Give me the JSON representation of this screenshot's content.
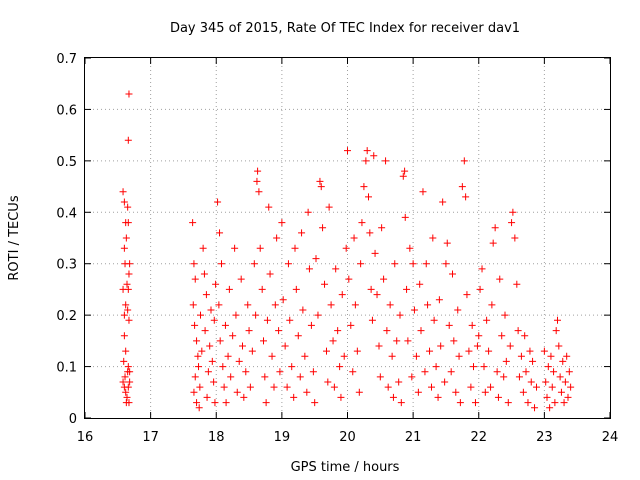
{
  "chart_data": {
    "type": "scatter",
    "title": "Day 345 of 2015, Rate Of TEC Index for receiver dav1",
    "xlabel": "GPS time / hours",
    "ylabel": "ROTI / TECUs",
    "xlim": [
      16,
      24
    ],
    "ylim": [
      0,
      0.7
    ],
    "xticks": [
      "16",
      "17",
      "18",
      "19",
      "20",
      "21",
      "22",
      "23",
      "24"
    ],
    "yticks": [
      "0",
      "0.1",
      "0.2",
      "0.3",
      "0.4",
      "0.5",
      "0.6",
      "0.7"
    ],
    "grid": true,
    "marker": "+",
    "color": "#ff0000",
    "series": [
      {
        "points": [
          [
            16.58,
            0.44
          ],
          [
            16.6,
            0.42
          ],
          [
            16.62,
            0.38
          ],
          [
            16.63,
            0.35
          ],
          [
            16.6,
            0.33
          ],
          [
            16.61,
            0.3
          ],
          [
            16.64,
            0.26
          ],
          [
            16.62,
            0.22
          ],
          [
            16.6,
            0.2
          ],
          [
            16.58,
            0.25
          ],
          [
            16.6,
            0.16
          ],
          [
            16.62,
            0.13
          ],
          [
            16.59,
            0.11
          ],
          [
            16.58,
            0.07
          ],
          [
            16.6,
            0.06
          ],
          [
            16.62,
            0.05
          ],
          [
            16.64,
            0.04
          ],
          [
            16.61,
            0.08
          ],
          [
            16.63,
            0.03
          ],
          [
            16.65,
            0.09
          ],
          [
            16.67,
            0.63
          ],
          [
            16.66,
            0.54
          ],
          [
            16.65,
            0.41
          ],
          [
            16.66,
            0.38
          ],
          [
            16.68,
            0.3
          ],
          [
            16.67,
            0.28
          ],
          [
            16.66,
            0.25
          ],
          [
            16.65,
            0.21
          ],
          [
            16.67,
            0.19
          ],
          [
            16.66,
            0.1
          ],
          [
            16.68,
            0.07
          ],
          [
            16.66,
            0.06
          ],
          [
            16.67,
            0.03
          ],
          [
            16.68,
            0.09
          ],
          [
            17.64,
            0.38
          ],
          [
            17.66,
            0.3
          ],
          [
            17.68,
            0.27
          ],
          [
            17.65,
            0.22
          ],
          [
            17.67,
            0.18
          ],
          [
            17.7,
            0.15
          ],
          [
            17.72,
            0.12
          ],
          [
            17.68,
            0.08
          ],
          [
            17.66,
            0.05
          ],
          [
            17.7,
            0.03
          ],
          [
            17.74,
            0.02
          ],
          [
            17.73,
            0.1
          ],
          [
            17.76,
            0.2
          ],
          [
            17.78,
            0.13
          ],
          [
            17.75,
            0.06
          ],
          [
            17.8,
            0.33
          ],
          [
            17.82,
            0.28
          ],
          [
            17.85,
            0.24
          ],
          [
            17.83,
            0.17
          ],
          [
            17.88,
            0.09
          ],
          [
            17.86,
            0.04
          ],
          [
            17.9,
            0.14
          ],
          [
            17.92,
            0.21
          ],
          [
            17.94,
            0.11
          ],
          [
            17.96,
            0.07
          ],
          [
            17.98,
            0.03
          ],
          [
            17.97,
            0.19
          ],
          [
            17.99,
            0.26
          ],
          [
            18.02,
            0.42
          ],
          [
            18.05,
            0.36
          ],
          [
            18.08,
            0.3
          ],
          [
            18.04,
            0.22
          ],
          [
            18.06,
            0.15
          ],
          [
            18.1,
            0.1
          ],
          [
            18.12,
            0.06
          ],
          [
            18.15,
            0.03
          ],
          [
            18.14,
            0.18
          ],
          [
            18.18,
            0.12
          ],
          [
            18.2,
            0.25
          ],
          [
            18.22,
            0.08
          ],
          [
            18.25,
            0.16
          ],
          [
            18.28,
            0.33
          ],
          [
            18.3,
            0.2
          ],
          [
            18.32,
            0.05
          ],
          [
            18.35,
            0.11
          ],
          [
            18.38,
            0.27
          ],
          [
            18.4,
            0.14
          ],
          [
            18.42,
            0.04
          ],
          [
            18.45,
            0.09
          ],
          [
            18.48,
            0.22
          ],
          [
            18.5,
            0.17
          ],
          [
            18.52,
            0.06
          ],
          [
            18.55,
            0.13
          ],
          [
            18.58,
            0.3
          ],
          [
            18.6,
            0.2
          ],
          [
            18.62,
            0.46
          ],
          [
            18.63,
            0.48
          ],
          [
            18.65,
            0.44
          ],
          [
            18.67,
            0.33
          ],
          [
            18.7,
            0.25
          ],
          [
            18.72,
            0.15
          ],
          [
            18.74,
            0.08
          ],
          [
            18.76,
            0.03
          ],
          [
            18.78,
            0.19
          ],
          [
            18.8,
            0.41
          ],
          [
            18.82,
            0.28
          ],
          [
            18.85,
            0.12
          ],
          [
            18.88,
            0.06
          ],
          [
            18.9,
            0.22
          ],
          [
            18.92,
            0.35
          ],
          [
            18.95,
            0.17
          ],
          [
            18.97,
            0.09
          ],
          [
            19.0,
            0.38
          ],
          [
            19.02,
            0.23
          ],
          [
            19.05,
            0.14
          ],
          [
            19.08,
            0.06
          ],
          [
            19.1,
            0.3
          ],
          [
            19.12,
            0.19
          ],
          [
            19.15,
            0.1
          ],
          [
            19.18,
            0.04
          ],
          [
            19.2,
            0.33
          ],
          [
            19.22,
            0.25
          ],
          [
            19.25,
            0.16
          ],
          [
            19.28,
            0.08
          ],
          [
            19.3,
            0.36
          ],
          [
            19.32,
            0.21
          ],
          [
            19.35,
            0.12
          ],
          [
            19.38,
            0.05
          ],
          [
            19.4,
            0.4
          ],
          [
            19.42,
            0.29
          ],
          [
            19.45,
            0.18
          ],
          [
            19.48,
            0.09
          ],
          [
            19.5,
            0.03
          ],
          [
            19.52,
            0.31
          ],
          [
            19.55,
            0.2
          ],
          [
            19.58,
            0.46
          ],
          [
            19.6,
            0.45
          ],
          [
            19.62,
            0.37
          ],
          [
            19.65,
            0.26
          ],
          [
            19.68,
            0.13
          ],
          [
            19.7,
            0.07
          ],
          [
            19.72,
            0.41
          ],
          [
            19.75,
            0.22
          ],
          [
            19.78,
            0.15
          ],
          [
            19.8,
            0.06
          ],
          [
            19.82,
            0.29
          ],
          [
            19.85,
            0.17
          ],
          [
            19.88,
            0.1
          ],
          [
            19.9,
            0.04
          ],
          [
            19.92,
            0.24
          ],
          [
            19.95,
            0.12
          ],
          [
            19.98,
            0.33
          ],
          [
            20.0,
            0.52
          ],
          [
            20.02,
            0.27
          ],
          [
            20.05,
            0.18
          ],
          [
            20.08,
            0.09
          ],
          [
            20.1,
            0.35
          ],
          [
            20.12,
            0.22
          ],
          [
            20.15,
            0.13
          ],
          [
            20.18,
            0.05
          ],
          [
            20.2,
            0.3
          ],
          [
            20.22,
            0.38
          ],
          [
            20.25,
            0.45
          ],
          [
            20.28,
            0.5
          ],
          [
            20.3,
            0.52
          ],
          [
            20.32,
            0.43
          ],
          [
            20.34,
            0.36
          ],
          [
            20.36,
            0.25
          ],
          [
            20.38,
            0.19
          ],
          [
            20.4,
            0.51
          ],
          [
            20.42,
            0.32
          ],
          [
            20.45,
            0.24
          ],
          [
            20.48,
            0.14
          ],
          [
            20.5,
            0.08
          ],
          [
            20.52,
            0.37
          ],
          [
            20.55,
            0.27
          ],
          [
            20.58,
            0.5
          ],
          [
            20.6,
            0.17
          ],
          [
            20.62,
            0.06
          ],
          [
            20.65,
            0.22
          ],
          [
            20.68,
            0.12
          ],
          [
            20.7,
            0.04
          ],
          [
            20.72,
            0.3
          ],
          [
            20.75,
            0.15
          ],
          [
            20.78,
            0.07
          ],
          [
            20.8,
            0.2
          ],
          [
            20.82,
            0.03
          ],
          [
            20.85,
            0.47
          ],
          [
            20.87,
            0.48
          ],
          [
            20.88,
            0.39
          ],
          [
            20.9,
            0.25
          ],
          [
            20.92,
            0.15
          ],
          [
            20.95,
            0.33
          ],
          [
            20.98,
            0.08
          ],
          [
            21.0,
            0.3
          ],
          [
            21.02,
            0.21
          ],
          [
            21.05,
            0.12
          ],
          [
            21.08,
            0.05
          ],
          [
            21.1,
            0.26
          ],
          [
            21.12,
            0.17
          ],
          [
            21.15,
            0.44
          ],
          [
            21.18,
            0.09
          ],
          [
            21.2,
            0.3
          ],
          [
            21.22,
            0.22
          ],
          [
            21.25,
            0.13
          ],
          [
            21.28,
            0.06
          ],
          [
            21.3,
            0.35
          ],
          [
            21.32,
            0.19
          ],
          [
            21.35,
            0.1
          ],
          [
            21.38,
            0.04
          ],
          [
            21.4,
            0.23
          ],
          [
            21.42,
            0.14
          ],
          [
            21.45,
            0.42
          ],
          [
            21.48,
            0.07
          ],
          [
            21.5,
            0.3
          ],
          [
            21.52,
            0.34
          ],
          [
            21.55,
            0.18
          ],
          [
            21.58,
            0.09
          ],
          [
            21.6,
            0.28
          ],
          [
            21.62,
            0.15
          ],
          [
            21.65,
            0.05
          ],
          [
            21.68,
            0.21
          ],
          [
            21.7,
            0.12
          ],
          [
            21.72,
            0.03
          ],
          [
            21.75,
            0.45
          ],
          [
            21.78,
            0.5
          ],
          [
            21.8,
            0.43
          ],
          [
            21.82,
            0.24
          ],
          [
            21.85,
            0.13
          ],
          [
            21.88,
            0.06
          ],
          [
            21.9,
            0.18
          ],
          [
            21.92,
            0.1
          ],
          [
            21.95,
            0.03
          ],
          [
            21.98,
            0.14
          ],
          [
            22.0,
            0.16
          ],
          [
            22.02,
            0.25
          ],
          [
            22.05,
            0.29
          ],
          [
            22.08,
            0.1
          ],
          [
            22.1,
            0.05
          ],
          [
            22.12,
            0.19
          ],
          [
            22.15,
            0.13
          ],
          [
            22.18,
            0.06
          ],
          [
            22.2,
            0.22
          ],
          [
            22.22,
            0.34
          ],
          [
            22.25,
            0.37
          ],
          [
            22.28,
            0.09
          ],
          [
            22.3,
            0.04
          ],
          [
            22.32,
            0.27
          ],
          [
            22.35,
            0.16
          ],
          [
            22.38,
            0.08
          ],
          [
            22.4,
            0.2
          ],
          [
            22.42,
            0.11
          ],
          [
            22.45,
            0.03
          ],
          [
            22.48,
            0.14
          ],
          [
            22.5,
            0.38
          ],
          [
            22.52,
            0.4
          ],
          [
            22.55,
            0.35
          ],
          [
            22.58,
            0.26
          ],
          [
            22.6,
            0.17
          ],
          [
            22.62,
            0.08
          ],
          [
            22.65,
            0.12
          ],
          [
            22.68,
            0.05
          ],
          [
            22.7,
            0.16
          ],
          [
            22.72,
            0.09
          ],
          [
            22.75,
            0.03
          ],
          [
            22.78,
            0.13
          ],
          [
            22.8,
            0.07
          ],
          [
            22.82,
            0.11
          ],
          [
            22.85,
            0.02
          ],
          [
            22.88,
            0.06
          ],
          [
            23.0,
            0.13
          ],
          [
            23.02,
            0.07
          ],
          [
            23.04,
            0.04
          ],
          [
            23.06,
            0.1
          ],
          [
            23.08,
            0.02
          ],
          [
            23.1,
            0.12
          ],
          [
            23.12,
            0.06
          ],
          [
            23.14,
            0.09
          ],
          [
            23.16,
            0.03
          ],
          [
            23.18,
            0.17
          ],
          [
            23.2,
            0.19
          ],
          [
            23.22,
            0.14
          ],
          [
            23.24,
            0.08
          ],
          [
            23.26,
            0.05
          ],
          [
            23.28,
            0.11
          ],
          [
            23.3,
            0.03
          ],
          [
            23.32,
            0.07
          ],
          [
            23.34,
            0.12
          ],
          [
            23.36,
            0.04
          ],
          [
            23.38,
            0.09
          ],
          [
            23.4,
            0.06
          ]
        ]
      }
    ]
  }
}
